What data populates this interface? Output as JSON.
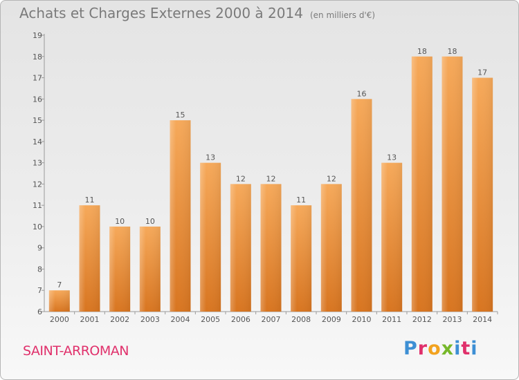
{
  "header": {
    "title": "Achats et Charges Externes 2000 à 2014",
    "unit": "(en milliers d'€)"
  },
  "footer": {
    "town": "SAINT-ARROMAN",
    "logo_text": "Proxiti"
  },
  "colors": {
    "bar_top": "#f6a95a",
    "bar_bottom": "#d87520",
    "town": "#e0306b",
    "logo": [
      "#3d8fd4",
      "#e0306b",
      "#f2a21e",
      "#76b82a",
      "#3d8fd4",
      "#e0306b",
      "#3d8fd4"
    ]
  },
  "chart_data": {
    "type": "bar",
    "categories": [
      "2000",
      "2001",
      "2002",
      "2003",
      "2004",
      "2005",
      "2006",
      "2007",
      "2008",
      "2009",
      "2010",
      "2011",
      "2012",
      "2013",
      "2014"
    ],
    "values": [
      7,
      11,
      10,
      10,
      15,
      13,
      12,
      12,
      11,
      12,
      16,
      13,
      18,
      18,
      17
    ],
    "data_labels": [
      "7",
      "11",
      "10",
      "10",
      "15",
      "13",
      "12",
      "12",
      "11",
      "12",
      "16",
      "13",
      "18",
      "18",
      "17"
    ],
    "y_ticks": [
      6,
      7,
      8,
      9,
      10,
      11,
      12,
      13,
      14,
      15,
      16,
      17,
      18,
      19
    ],
    "ylim": [
      6,
      19
    ],
    "grid": false
  }
}
